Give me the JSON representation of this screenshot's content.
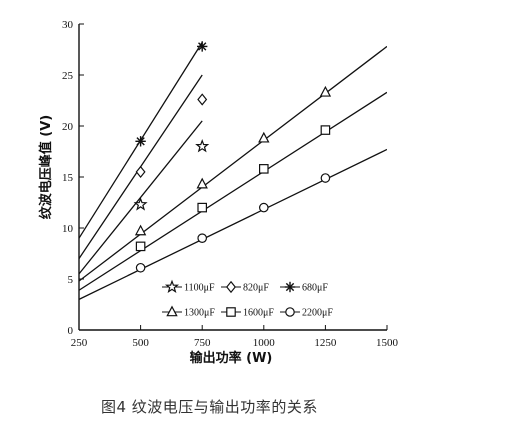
{
  "caption": "图4 纹波电压与输出功率的关系",
  "chart_data": {
    "type": "line",
    "title": "",
    "xlabel": "输出功率 (W)",
    "ylabel": "纹波电压峰值 (V)",
    "xlim": [
      250,
      1500
    ],
    "ylim": [
      0,
      30
    ],
    "xticks": [
      250,
      500,
      750,
      1000,
      1250,
      1500
    ],
    "yticks": [
      0,
      5,
      10,
      15,
      20,
      25,
      30
    ],
    "grid": false,
    "legend_position": "bottom-right",
    "series": [
      {
        "name": "1100μF",
        "marker": "star",
        "line": [
          [
            250,
            5.5
          ],
          [
            750,
            20.5
          ]
        ],
        "points": [
          [
            500,
            12.3
          ],
          [
            750,
            18
          ]
        ]
      },
      {
        "name": "820μF",
        "marker": "diamond",
        "line": [
          [
            250,
            7
          ],
          [
            750,
            25
          ]
        ],
        "points": [
          [
            500,
            15.5
          ],
          [
            750,
            22.6
          ]
        ]
      },
      {
        "name": "680μF",
        "marker": "asterisk",
        "line": [
          [
            250,
            9
          ],
          [
            750,
            28.2
          ]
        ],
        "points": [
          [
            500,
            18.5
          ],
          [
            750,
            27.8
          ]
        ]
      },
      {
        "name": "1300μF",
        "marker": "triangle",
        "line": [
          [
            250,
            4.8
          ],
          [
            1500,
            27.8
          ]
        ],
        "points": [
          [
            500,
            9.7
          ],
          [
            750,
            14.3
          ],
          [
            1000,
            18.8
          ],
          [
            1250,
            23.3
          ]
        ]
      },
      {
        "name": "1600μF",
        "marker": "square",
        "line": [
          [
            250,
            3.9
          ],
          [
            1500,
            23.3
          ]
        ],
        "points": [
          [
            500,
            8.2
          ],
          [
            750,
            12
          ],
          [
            1000,
            15.8
          ],
          [
            1250,
            19.6
          ]
        ]
      },
      {
        "name": "2200μF",
        "marker": "circle",
        "line": [
          [
            250,
            3
          ],
          [
            1500,
            17.7
          ]
        ],
        "points": [
          [
            500,
            6.1
          ],
          [
            750,
            9
          ],
          [
            1000,
            12
          ],
          [
            1250,
            14.9
          ]
        ]
      }
    ],
    "legend": [
      [
        "1100μF",
        "820μF",
        "680μF"
      ],
      [
        "1300μF",
        "1600μF",
        "2200μF"
      ]
    ]
  }
}
